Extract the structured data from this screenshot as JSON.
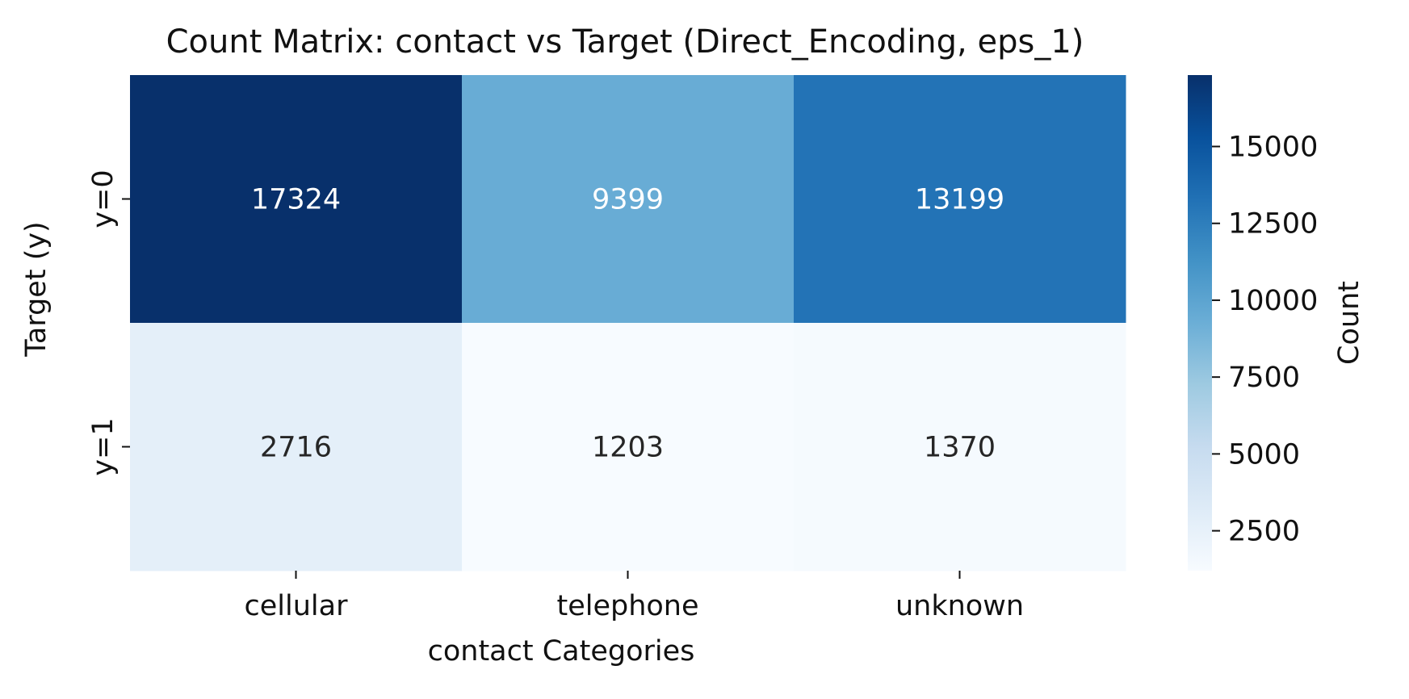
{
  "chart_data": {
    "type": "heatmap",
    "title": "Count Matrix: contact vs Target (Direct_Encoding, eps_1)",
    "xlabel": "contact Categories",
    "ylabel": "Target (y)",
    "x_categories": [
      "cellular",
      "telephone",
      "unknown"
    ],
    "y_categories": [
      "y=0",
      "y=1"
    ],
    "values": [
      [
        17324,
        9399,
        13199
      ],
      [
        2716,
        1203,
        1370
      ]
    ],
    "colormap": "Blues",
    "color_range": [
      1203,
      17324
    ],
    "colorbar": {
      "label": "Count",
      "ticks": [
        2500,
        5000,
        7500,
        10000,
        12500,
        15000
      ],
      "tick_labels": [
        "2500",
        "5000",
        "7500",
        "10000",
        "12500",
        "15000"
      ]
    },
    "annotation_colors": {
      "dark_text": "#262626",
      "light_text": "#ffffff"
    }
  }
}
